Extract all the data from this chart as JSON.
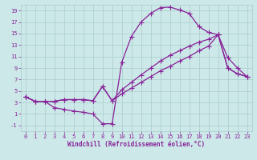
{
  "xlabel": "Windchill (Refroidissement éolien,°C)",
  "bg_color": "#cce8e8",
  "grid_color": "#aacccc",
  "line_color": "#882299",
  "xlim": [
    -0.5,
    23.5
  ],
  "ylim": [
    -2,
    20
  ],
  "xticks": [
    0,
    1,
    2,
    3,
    4,
    5,
    6,
    7,
    8,
    9,
    10,
    11,
    12,
    13,
    14,
    15,
    16,
    17,
    18,
    19,
    20,
    21,
    22,
    23
  ],
  "yticks": [
    -1,
    1,
    3,
    5,
    7,
    9,
    11,
    13,
    15,
    17,
    19
  ],
  "series1": {
    "x": [
      0,
      1,
      2,
      3,
      4,
      5,
      6,
      7,
      8,
      9,
      10,
      11,
      12,
      13,
      14,
      15,
      16,
      17,
      18,
      19,
      20,
      21,
      22,
      23
    ],
    "y": [
      4,
      3.2,
      3.2,
      2.1,
      1.8,
      1.5,
      1.3,
      1.0,
      -0.7,
      -0.7,
      10.0,
      14.5,
      17.0,
      18.5,
      19.5,
      19.6,
      19.1,
      18.5,
      16.2,
      15.2,
      14.8,
      10.8,
      9.0,
      7.5
    ]
  },
  "series2": {
    "x": [
      0,
      1,
      2,
      3,
      4,
      5,
      6,
      7,
      8,
      9,
      10,
      11,
      12,
      13,
      14,
      15,
      16,
      17,
      18,
      19,
      20,
      21,
      22,
      23
    ],
    "y": [
      4,
      3.2,
      3.2,
      3.2,
      3.5,
      3.5,
      3.5,
      3.3,
      5.8,
      3.3,
      5.2,
      6.5,
      7.8,
      9.0,
      10.2,
      11.2,
      12.0,
      12.8,
      13.5,
      14.0,
      14.8,
      9.0,
      8.0,
      7.5
    ]
  },
  "series3": {
    "x": [
      0,
      1,
      2,
      3,
      4,
      5,
      6,
      7,
      8,
      9,
      10,
      11,
      12,
      13,
      14,
      15,
      16,
      17,
      18,
      19,
      20,
      21,
      22,
      23
    ],
    "y": [
      4,
      3.2,
      3.2,
      3.2,
      3.5,
      3.5,
      3.5,
      3.3,
      5.8,
      3.3,
      4.5,
      5.5,
      6.5,
      7.5,
      8.5,
      9.3,
      10.2,
      11.0,
      12.0,
      12.8,
      14.8,
      9.0,
      8.0,
      7.5
    ]
  },
  "marker": "+",
  "markersize": 4,
  "linewidth": 0.9,
  "tick_fontsize": 5,
  "xlabel_fontsize": 5.5
}
